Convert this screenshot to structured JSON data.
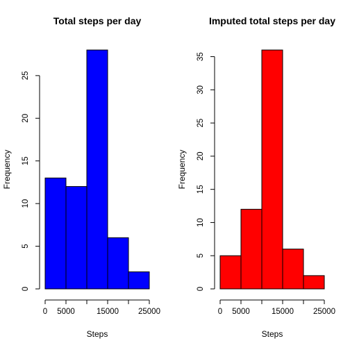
{
  "chart_data": [
    {
      "type": "bar",
      "title": "Total steps per day",
      "xlabel": "Steps",
      "ylabel": "Frequency",
      "bins": [
        [
          0,
          5000
        ],
        [
          5000,
          10000
        ],
        [
          10000,
          15000
        ],
        [
          15000,
          20000
        ],
        [
          20000,
          25000
        ]
      ],
      "values": [
        13,
        12,
        28,
        6,
        2
      ],
      "xlim": [
        0,
        25000
      ],
      "ylim": [
        0,
        28
      ],
      "xticks": [
        0,
        5000,
        10000,
        15000,
        20000,
        25000
      ],
      "xtick_labels": [
        "0",
        "5000",
        "",
        "15000",
        "",
        "25000"
      ],
      "yticks": [
        0,
        5,
        10,
        15,
        20,
        25
      ],
      "ytick_labels": [
        "0",
        "5",
        "10",
        "15",
        "20",
        "25"
      ],
      "bar_color": "#0000ff",
      "grid": false
    },
    {
      "type": "bar",
      "title": "Imputed total steps per day",
      "xlabel": "Steps",
      "ylabel": "Frequency",
      "bins": [
        [
          0,
          5000
        ],
        [
          5000,
          10000
        ],
        [
          10000,
          15000
        ],
        [
          15000,
          20000
        ],
        [
          20000,
          25000
        ]
      ],
      "values": [
        5,
        12,
        36,
        6,
        2
      ],
      "xlim": [
        0,
        25000
      ],
      "ylim": [
        0,
        36
      ],
      "xticks": [
        0,
        5000,
        10000,
        15000,
        20000,
        25000
      ],
      "xtick_labels": [
        "0",
        "5000",
        "",
        "15000",
        "",
        "25000"
      ],
      "yticks": [
        0,
        5,
        10,
        15,
        20,
        25,
        30,
        35
      ],
      "ytick_labels": [
        "0",
        "5",
        "10",
        "15",
        "20",
        "25",
        "30",
        "35"
      ],
      "bar_color": "#ff0000",
      "grid": false
    }
  ]
}
